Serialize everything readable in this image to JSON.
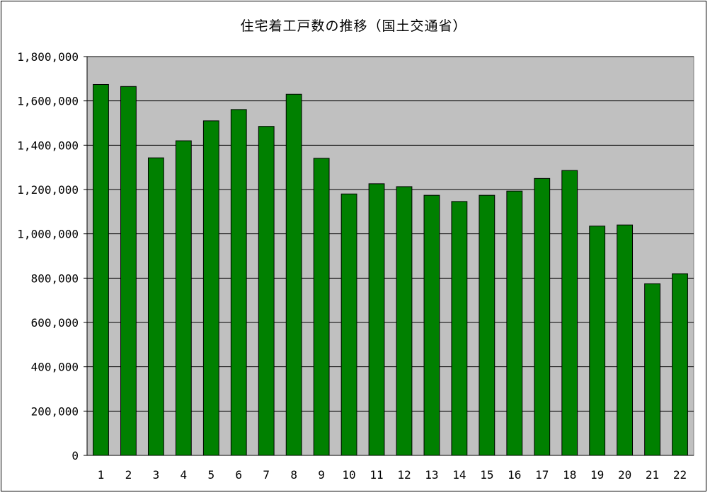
{
  "chart_data": {
    "type": "bar",
    "title": "住宅着工戸数の推移（国土交通省）",
    "xlabel": "",
    "ylabel": "",
    "categories": [
      "1",
      "2",
      "3",
      "4",
      "5",
      "6",
      "7",
      "8",
      "9",
      "10",
      "11",
      "12",
      "13",
      "14",
      "15",
      "16",
      "17",
      "18",
      "19",
      "20",
      "21",
      "22"
    ],
    "values": [
      1674000,
      1665000,
      1343000,
      1420000,
      1510000,
      1561000,
      1485000,
      1630000,
      1341000,
      1180000,
      1226000,
      1213000,
      1174000,
      1146000,
      1174000,
      1193000,
      1250000,
      1286000,
      1035000,
      1040000,
      775000,
      820000
    ],
    "ylim": [
      0,
      1800000
    ],
    "yticks": [
      "0",
      "200,000",
      "400,000",
      "600,000",
      "800,000",
      "1,000,000",
      "1,200,000",
      "1,400,000",
      "1,600,000",
      "1,800,000"
    ],
    "grid": true,
    "legend": "none",
    "colors": {
      "bar": "#008000",
      "bar_edge": "#000000",
      "plot_bg": "#c0c0c0",
      "grid": "#000000"
    }
  }
}
